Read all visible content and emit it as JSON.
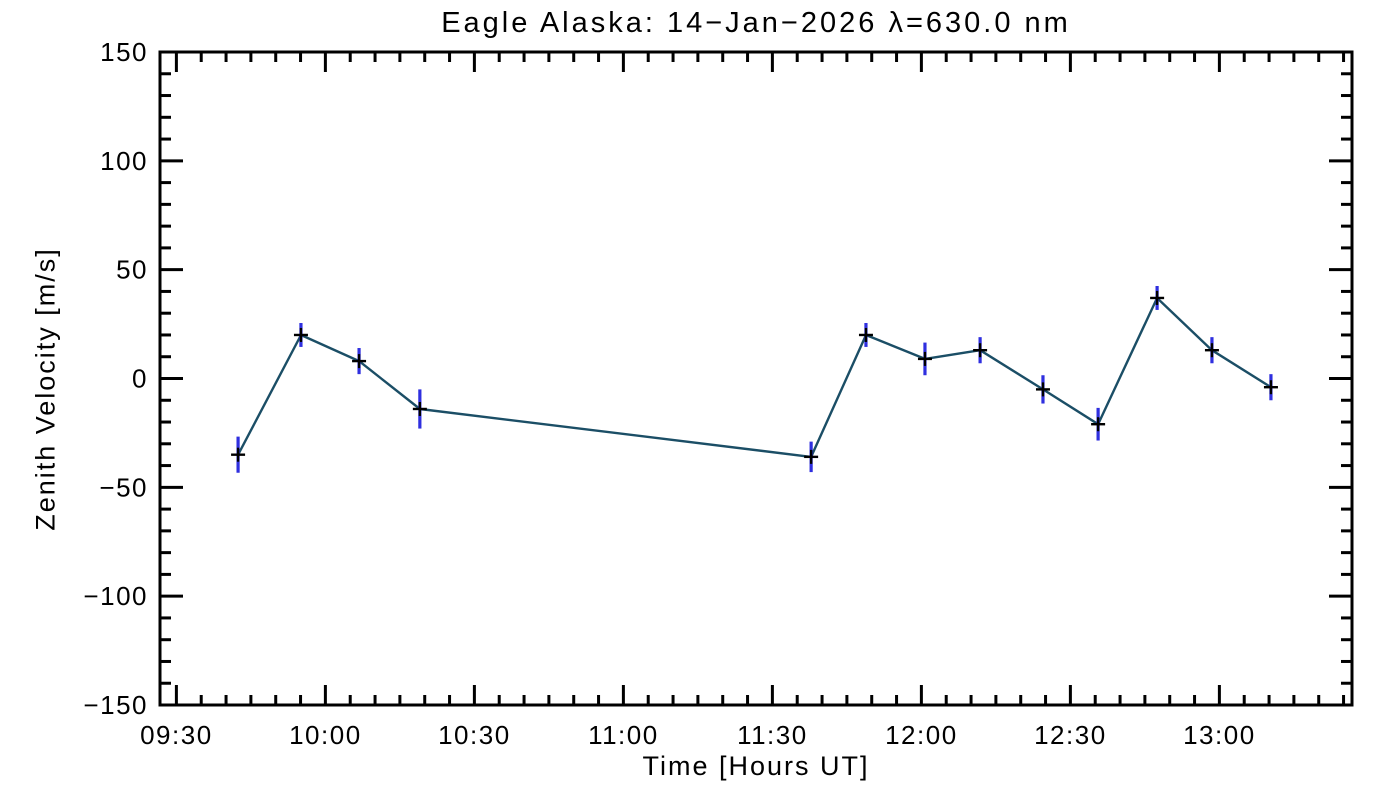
{
  "chart_data": {
    "type": "line",
    "title": "Eagle Alaska: 14−Jan−2026 λ=630.0 nm",
    "xlabel": "Time [Hours UT]",
    "ylabel": "Zenith Velocity [m/s]",
    "grid": false,
    "legend": "none",
    "x_axis": {
      "unit": "Hours UT",
      "range_hours": [
        9.445,
        13.445
      ],
      "major_ticks": [
        {
          "hours": 9.5,
          "label": "09:30"
        },
        {
          "hours": 10.0,
          "label": "10:00"
        },
        {
          "hours": 10.5,
          "label": "10:30"
        },
        {
          "hours": 11.0,
          "label": "11:00"
        },
        {
          "hours": 11.5,
          "label": "11:30"
        },
        {
          "hours": 12.0,
          "label": "12:00"
        },
        {
          "hours": 12.5,
          "label": "12:30"
        },
        {
          "hours": 13.0,
          "label": "13:00"
        }
      ],
      "minor_tick_minutes": 5
    },
    "y_axis": {
      "unit": "m/s",
      "range": [
        -150,
        150
      ],
      "major_ticks": [
        {
          "value": 150,
          "label": "150"
        },
        {
          "value": 100,
          "label": "100"
        },
        {
          "value": 50,
          "label": "50"
        },
        {
          "value": 0,
          "label": "0"
        },
        {
          "value": -50,
          "label": "−50"
        },
        {
          "value": -100,
          "label": "−100"
        },
        {
          "value": -150,
          "label": "−150"
        }
      ],
      "minor_tick_step": 10
    },
    "series": [
      {
        "name": "zenith-velocity",
        "marker": "plus",
        "points": [
          {
            "time": "09:42",
            "hours": 9.707,
            "velocity": -35,
            "error": 8.3
          },
          {
            "time": "09:55",
            "hours": 9.918,
            "velocity": 20,
            "error": 5.5
          },
          {
            "time": "10:07",
            "hours": 10.113,
            "velocity": 8,
            "error": 6.0
          },
          {
            "time": "10:19",
            "hours": 10.317,
            "velocity": -14,
            "error": 9.0
          },
          {
            "time": "11:38",
            "hours": 11.63,
            "velocity": -36,
            "error": 7.0
          },
          {
            "time": "11:49",
            "hours": 11.814,
            "velocity": 20,
            "error": 5.5
          },
          {
            "time": "12:01",
            "hours": 12.012,
            "velocity": 9,
            "error": 7.5
          },
          {
            "time": "12:12",
            "hours": 12.197,
            "velocity": 13,
            "error": 6.0
          },
          {
            "time": "12:25",
            "hours": 12.408,
            "velocity": -5,
            "error": 6.5
          },
          {
            "time": "12:36",
            "hours": 12.593,
            "velocity": -21,
            "error": 7.5
          },
          {
            "time": "12:47",
            "hours": 12.791,
            "velocity": 37,
            "error": 5.5
          },
          {
            "time": "12:59",
            "hours": 12.975,
            "velocity": 13,
            "error": 6.0
          },
          {
            "time": "13:10",
            "hours": 13.173,
            "velocity": -4,
            "error": 6.0
          }
        ]
      }
    ],
    "colors": {
      "line": "#1b4e66",
      "error_bar": "#2f2fdf",
      "marker": "#000000",
      "frame": "#000000",
      "background": "#ffffff"
    }
  }
}
